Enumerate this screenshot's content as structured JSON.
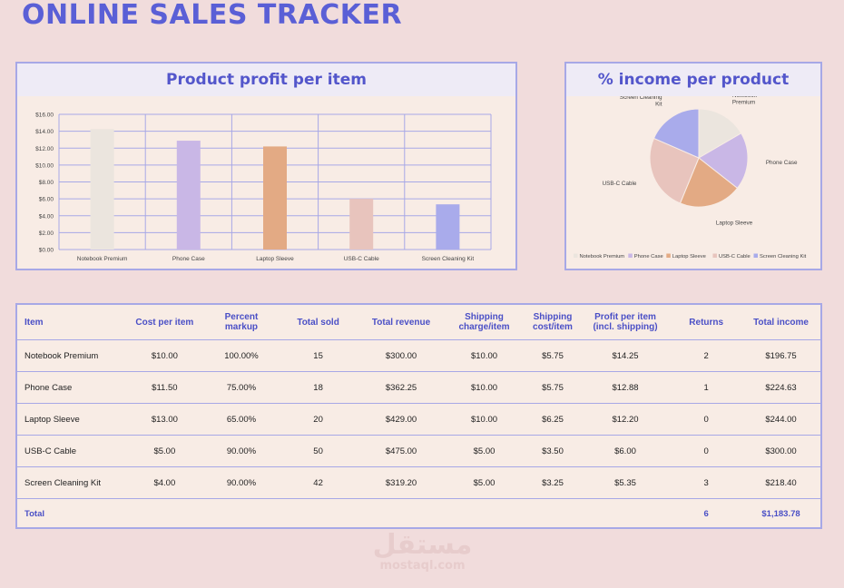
{
  "title": "ONLINE SALES TRACKER",
  "colors": {
    "accent": "#5a5fd6",
    "panel_border": "#a7a8e6",
    "panel_bg": "#f8ece5",
    "page_bg": "#f1dcdc"
  },
  "chart_data": [
    {
      "type": "bar",
      "title": "Product profit per item",
      "categories": [
        "Notebook Premium",
        "Phone Case",
        "Laptop Sleeve",
        "USB-C Cable",
        "Screen Cleaning Kit"
      ],
      "values": [
        14.25,
        12.88,
        12.2,
        6.0,
        5.35
      ],
      "colors": [
        "#ebe5de",
        "#c9b7e6",
        "#e3aa84",
        "#e8c4bd",
        "#a9abeb"
      ],
      "yticks": [
        "$0.00",
        "$2.00",
        "$4.00",
        "$6.00",
        "$8.00",
        "$10.00",
        "$12.00",
        "$14.00",
        "$16.00"
      ],
      "ylim": [
        0,
        16
      ],
      "xlabel": "",
      "ylabel": "",
      "grid": true
    },
    {
      "type": "pie",
      "title": "% income per product",
      "labels": [
        "Notebook Premium",
        "Phone Case",
        "Laptop Sleeve",
        "USB-C Cable",
        "Screen Cleaning Kit"
      ],
      "values": [
        196.75,
        224.63,
        244.0,
        300.0,
        218.4
      ],
      "colors": [
        "#ebe5de",
        "#c9b7e6",
        "#e3aa84",
        "#e8c4bd",
        "#a9abeb"
      ],
      "legend_position": "bottom"
    }
  ],
  "table": {
    "headers": [
      "Item",
      "Cost per item",
      "Percent markup",
      "Total sold",
      "Total revenue",
      "Shipping charge/item",
      "Shipping cost/item",
      "Profit per item (incl. shipping)",
      "Returns",
      "Total income"
    ],
    "rows": [
      [
        "Notebook Premium",
        "$10.00",
        "100.00%",
        "15",
        "$300.00",
        "$10.00",
        "$5.75",
        "$14.25",
        "2",
        "$196.75"
      ],
      [
        "Phone Case",
        "$11.50",
        "75.00%",
        "18",
        "$362.25",
        "$10.00",
        "$5.75",
        "$12.88",
        "1",
        "$224.63"
      ],
      [
        "Laptop Sleeve",
        "$13.00",
        "65.00%",
        "20",
        "$429.00",
        "$10.00",
        "$6.25",
        "$12.20",
        "0",
        "$244.00"
      ],
      [
        "USB-C Cable",
        "$5.00",
        "90.00%",
        "50",
        "$475.00",
        "$5.00",
        "$3.50",
        "$6.00",
        "0",
        "$300.00"
      ],
      [
        "Screen Cleaning Kit",
        "$4.00",
        "90.00%",
        "42",
        "$319.20",
        "$5.00",
        "$3.25",
        "$5.35",
        "3",
        "$218.40"
      ]
    ],
    "total": {
      "label": "Total",
      "returns": "6",
      "income": "$1,183.78"
    }
  },
  "watermark": {
    "arabic": "مستقل",
    "latin": "mostaql.com"
  }
}
